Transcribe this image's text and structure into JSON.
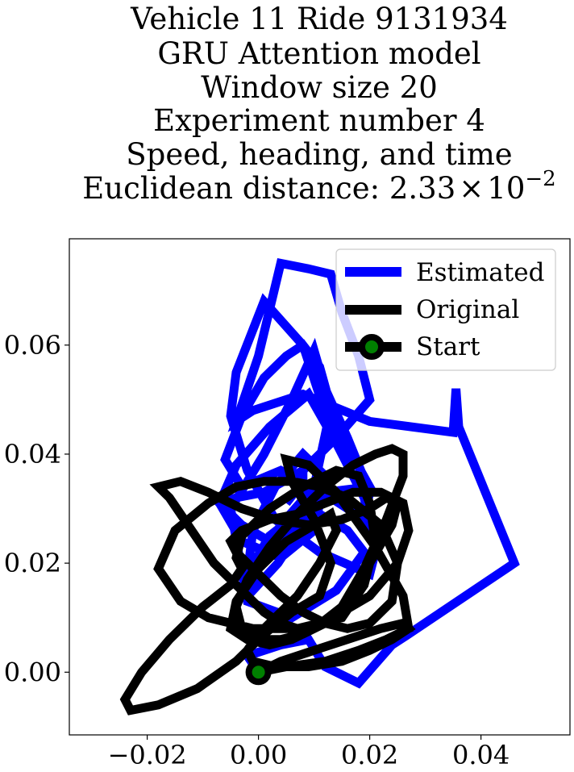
{
  "chart_data": {
    "type": "line",
    "title_lines": [
      "Vehicle 11 Ride 9131934",
      "GRU Attention model",
      "Window size 20",
      "Experiment number 4",
      "Speed, heading, and time"
    ],
    "title_metric_prefix": "Euclidean distance: ",
    "title_metric_mantissa": "2.33",
    "title_metric_times": "×",
    "title_metric_base": "10",
    "title_metric_exponent": "−2",
    "xlim": [
      -0.034,
      0.056
    ],
    "ylim": [
      -0.0115,
      0.0795
    ],
    "x_ticks": [
      -0.02,
      0.0,
      0.02,
      0.04
    ],
    "x_tick_labels": [
      "−0.02",
      "0.00",
      "0.02",
      "0.04"
    ],
    "y_ticks": [
      0.0,
      0.02,
      0.04,
      0.06
    ],
    "y_tick_labels": [
      "0.00",
      "0.02",
      "0.04",
      "0.06"
    ],
    "grid": false,
    "legend_placement": "top-right",
    "legend": [
      "Estimated",
      "Original",
      "Start"
    ],
    "series": [
      {
        "name": "Estimated",
        "color": "#0000ff",
        "x": [
          0,
          -0.002,
          0.004,
          0.009,
          0.012,
          0.018,
          0.024,
          0.027,
          0.046,
          0.038,
          0.036,
          0.0355,
          0.035,
          0.02,
          0.008,
          -0.001,
          -0.004,
          0.0,
          0.004,
          0.009,
          0.013,
          0.015,
          0.018,
          0.02,
          0.014,
          0.008,
          0.001,
          -0.004,
          -0.007,
          -0.003,
          0.002,
          0.006,
          0.011,
          0.016,
          0.019,
          0.014,
          0.006,
          -0.002,
          -0.005,
          0.001,
          0.006,
          0.01,
          0.012,
          0.016,
          0.02,
          0.019,
          0.013,
          0.004,
          -0.003,
          -0.006,
          -0.003,
          0.001,
          0.005,
          0.008,
          0.011,
          0.014,
          0.02,
          0.012,
          0.002,
          -0.002,
          -0.001,
          0.003,
          0.008,
          0.012,
          0.01,
          0.004,
          -0.003,
          -0.007,
          -0.004,
          0.002,
          0.009,
          0.014,
          0.019,
          0.021,
          0.02,
          0.011,
          0.003,
          -0.002,
          -0.005,
          -0.004,
          0.001,
          0.008,
          0.0125,
          0.01,
          0.004,
          0.0,
          -0.001,
          0.0035,
          0.008,
          0.008,
          0.005
        ],
        "y": [
          0,
          0.003,
          0.005,
          0.006,
          0.001,
          -0.002,
          0.005,
          0.007,
          0.02,
          0.04,
          0.045,
          0.052,
          0.044,
          0.046,
          0.051,
          0.048,
          0.046,
          0.058,
          0.075,
          0.074,
          0.073,
          0.066,
          0.058,
          0.05,
          0.043,
          0.037,
          0.033,
          0.032,
          0.031,
          0.027,
          0.024,
          0.026,
          0.029,
          0.026,
          0.022,
          0.015,
          0.01,
          0.013,
          0.03,
          0.04,
          0.05,
          0.059,
          0.052,
          0.043,
          0.033,
          0.028,
          0.032,
          0.037,
          0.034,
          0.039,
          0.047,
          0.054,
          0.058,
          0.06,
          0.056,
          0.045,
          0.034,
          0.033,
          0.025,
          0.018,
          0.026,
          0.034,
          0.04,
          0.036,
          0.026,
          0.021,
          0.024,
          0.031,
          0.038,
          0.045,
          0.051,
          0.042,
          0.032,
          0.022,
          0.018,
          0.022,
          0.028,
          0.037,
          0.047,
          0.055,
          0.068,
          0.06,
          0.046,
          0.034,
          0.027,
          0.02,
          0.015,
          0.02,
          0.027,
          0.035,
          0.031
        ]
      },
      {
        "name": "Original",
        "color": "#000000",
        "x": [
          0,
          0.005,
          0.012,
          0.018,
          0.023,
          0.027,
          0.026,
          0.021,
          0.014,
          0.009,
          0.005,
          0.006,
          0.01,
          0.013,
          0.011,
          0.006,
          0.001,
          -0.004,
          -0.011,
          -0.018,
          -0.023,
          -0.024,
          -0.021,
          -0.016,
          -0.01,
          -0.005,
          -0.003,
          -0.004,
          -0.003,
          0.002,
          0.008,
          0.014,
          0.018,
          0.02,
          0.021,
          0.019,
          0.015,
          0.008,
          -0.001,
          -0.009,
          -0.014,
          -0.018,
          -0.015,
          -0.009,
          -0.004,
          0.001,
          0.006,
          0.011,
          0.016,
          0.022,
          0.025,
          0.024,
          0.02,
          0.016,
          0.012,
          0.008,
          0.004,
          0.0,
          -0.004,
          -0.005,
          -0.003,
          0.002,
          0.007,
          0.012,
          0.017,
          0.022,
          0.026,
          0.027,
          0.025,
          0.02,
          0.015,
          0.011,
          0.007,
          0.004,
          0.001,
          -0.003,
          -0.008,
          -0.012,
          -0.016,
          -0.018,
          -0.014,
          -0.009,
          -0.003,
          0.003,
          0.009,
          0.015,
          0.02,
          0.023,
          0.025,
          0.024,
          0.02,
          0.016,
          0.012,
          0.008,
          0.004,
          0.0,
          -0.003,
          -0.004,
          -0.002,
          0.002,
          0.007,
          0.012,
          0.017,
          0.021,
          0.024,
          0.026,
          0.026,
          0.023,
          0.019,
          0.015,
          0.01,
          0.006,
          0.002,
          -0.002,
          -0.005,
          -0.004,
          0.0,
          0.005,
          0.01,
          0.013,
          0.014,
          0.011,
          0.007,
          0.003,
          0.0,
          -0.002,
          -0.001,
          0.003,
          0.009,
          0.015,
          0.02,
          0.024,
          0.027,
          0.026,
          0.022,
          0.016,
          0.01,
          0.004,
          0.0
        ],
        "y": [
          0,
          0.001,
          0.002,
          0.004,
          0.006,
          0.008,
          0.014,
          0.023,
          0.033,
          0.038,
          0.039,
          0.035,
          0.028,
          0.02,
          0.014,
          0.011,
          0.007,
          0.002,
          -0.003,
          -0.006,
          -0.007,
          -0.005,
          0.0,
          0.006,
          0.012,
          0.016,
          0.019,
          0.021,
          0.025,
          0.03,
          0.034,
          0.037,
          0.036,
          0.031,
          0.024,
          0.016,
          0.01,
          0.008,
          0.008,
          0.01,
          0.013,
          0.019,
          0.026,
          0.031,
          0.034,
          0.035,
          0.035,
          0.034,
          0.032,
          0.027,
          0.02,
          0.013,
          0.009,
          0.008,
          0.009,
          0.011,
          0.014,
          0.018,
          0.022,
          0.024,
          0.026,
          0.028,
          0.029,
          0.031,
          0.033,
          0.033,
          0.031,
          0.026,
          0.02,
          0.014,
          0.011,
          0.009,
          0.008,
          0.009,
          0.011,
          0.015,
          0.02,
          0.026,
          0.032,
          0.034,
          0.035,
          0.033,
          0.03,
          0.028,
          0.027,
          0.028,
          0.03,
          0.032,
          0.031,
          0.027,
          0.02,
          0.013,
          0.009,
          0.007,
          0.006,
          0.006,
          0.008,
          0.012,
          0.017,
          0.023,
          0.029,
          0.034,
          0.038,
          0.04,
          0.041,
          0.04,
          0.036,
          0.028,
          0.019,
          0.012,
          0.008,
          0.006,
          0.005,
          0.006,
          0.008,
          0.013,
          0.019,
          0.024,
          0.027,
          0.029,
          0.026,
          0.02,
          0.014,
          0.01,
          0.007,
          0.004,
          0.002,
          0.001,
          0.001,
          0.002,
          0.004,
          0.006,
          0.008,
          0.009,
          0.008,
          0.006,
          0.004,
          0.002,
          0.0
        ]
      }
    ],
    "start": {
      "name": "Start",
      "x": 0,
      "y": 0,
      "marker_color": "#008000",
      "edge_color": "#000000"
    }
  }
}
